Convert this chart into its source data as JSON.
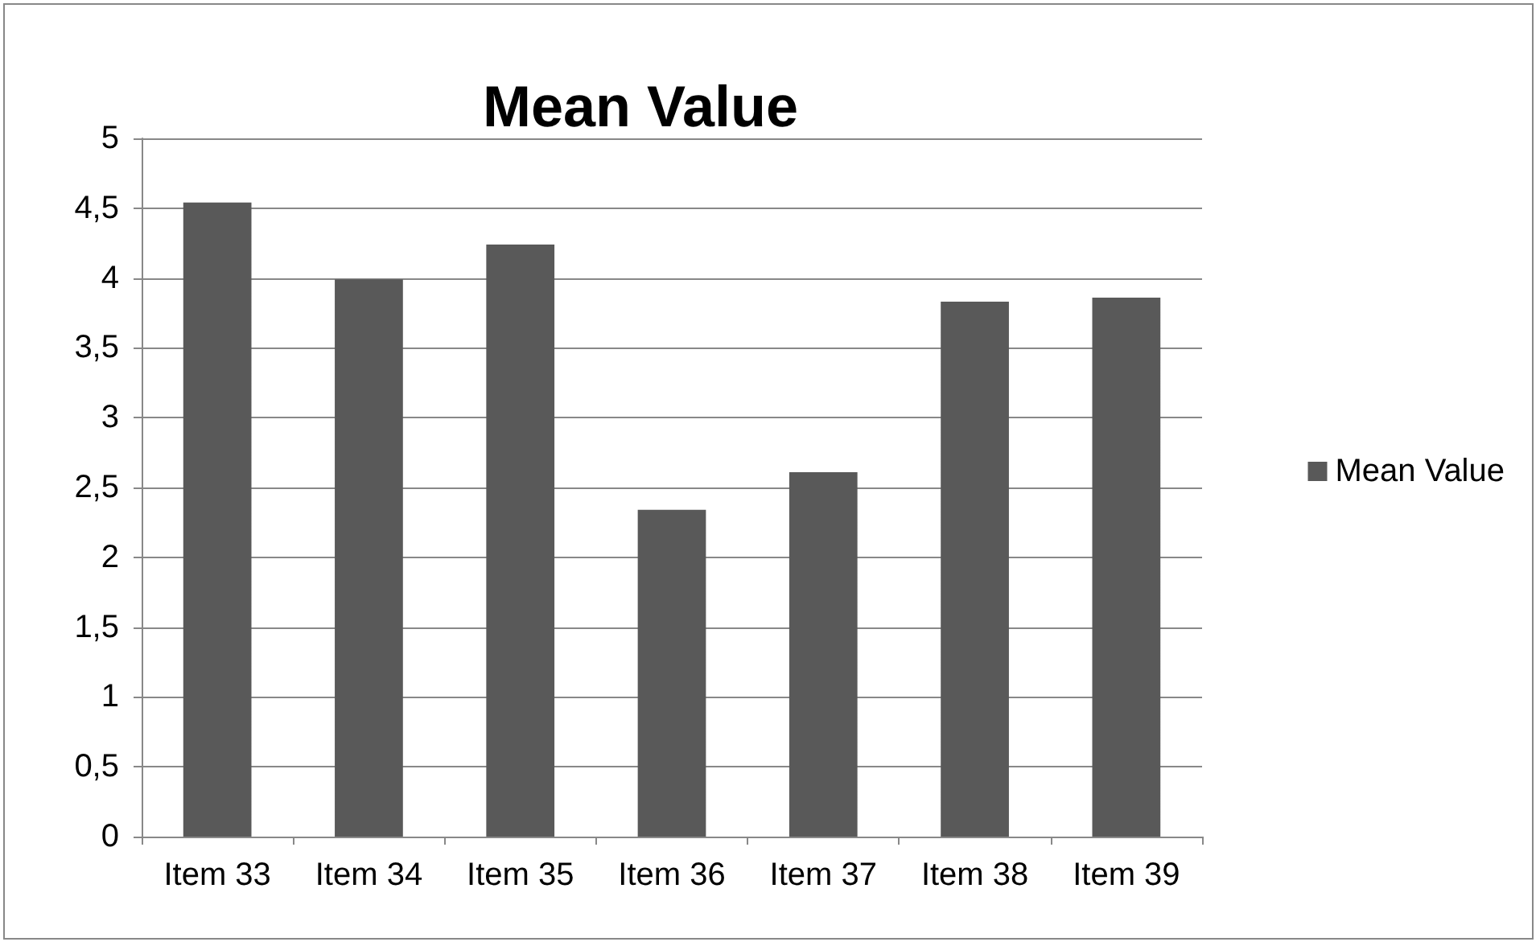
{
  "chart_data": {
    "type": "bar",
    "title": "Mean Value",
    "categories": [
      "Item 33",
      "Item 34",
      "Item 35",
      "Item 36",
      "Item 37",
      "Item 38",
      "Item 39"
    ],
    "series": [
      {
        "name": "Mean Value",
        "color": "#595959",
        "values": [
          4.54,
          3.99,
          4.24,
          2.34,
          2.61,
          3.83,
          3.86
        ]
      }
    ],
    "ylim": [
      0,
      5
    ],
    "yticks": [
      0,
      {
        "value": 0.5,
        "label": "0,5"
      },
      1,
      {
        "value": 1.5,
        "label": "1,5"
      },
      2,
      {
        "value": 2.5,
        "label": "2,5"
      },
      3,
      {
        "value": 3.5,
        "label": "3,5"
      },
      4,
      {
        "value": 4.5,
        "label": "4,5"
      },
      5
    ],
    "grid": "y",
    "legend": "right"
  }
}
